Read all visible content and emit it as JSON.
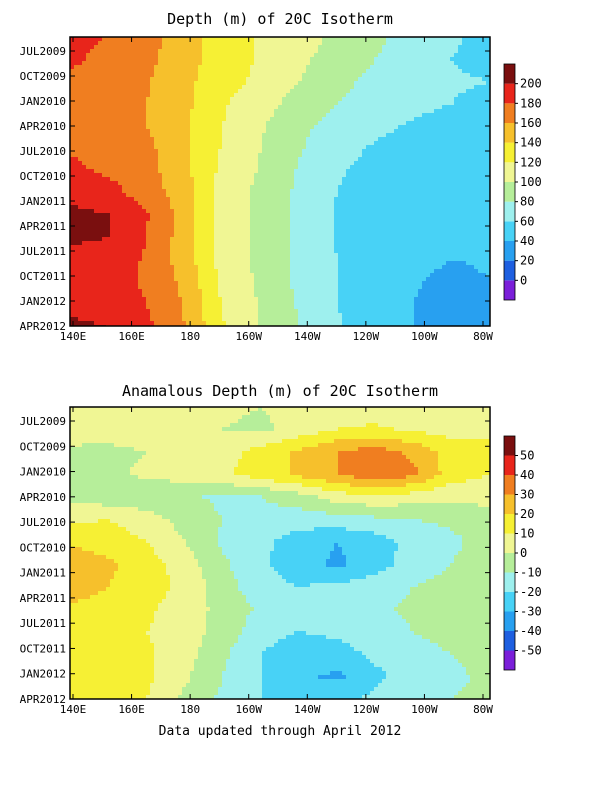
{
  "footer": "Data updated through April 2012",
  "chart_data": [
    {
      "type": "heatmap",
      "title": "Depth (m) of 20C Isotherm",
      "x_ticks": [
        "140E",
        "160E",
        "180",
        "160W",
        "140W",
        "120W",
        "100W",
        "80W"
      ],
      "y_ticks": [
        "JUL2009",
        "OCT2009",
        "JAN2010",
        "APR2010",
        "JUL2010",
        "OCT2010",
        "JAN2011",
        "APR2011",
        "JUL2011",
        "OCT2011",
        "JAN2012",
        "APR2012"
      ],
      "colorbar": {
        "labels": [
          "200",
          "180",
          "160",
          "140",
          "120",
          "100",
          "80",
          "60",
          "40",
          "20",
          "0"
        ],
        "levels": [
          0,
          20,
          40,
          60,
          80,
          100,
          120,
          140,
          160,
          180,
          200
        ],
        "colors": [
          "#7b1fd9",
          "#1e5fe0",
          "#28a0f0",
          "#48d2f6",
          "#9ef0ee",
          "#b6ee9a",
          "#f0f694",
          "#f6f034",
          "#f6c02c",
          "#f07e20",
          "#e8251b",
          "#7a0f0f"
        ]
      },
      "grid": [
        [
          190,
          178,
          168,
          150,
          128,
          118,
          108,
          96,
          84,
          72,
          62,
          55
        ],
        [
          185,
          172,
          165,
          148,
          130,
          118,
          104,
          92,
          80,
          70,
          60,
          55
        ],
        [
          175,
          168,
          162,
          145,
          128,
          115,
          100,
          85,
          75,
          68,
          62,
          60
        ],
        [
          170,
          165,
          160,
          145,
          122,
          108,
          92,
          80,
          72,
          65,
          60,
          55
        ],
        [
          175,
          165,
          160,
          142,
          120,
          102,
          85,
          72,
          64,
          58,
          52,
          50
        ],
        [
          178,
          170,
          165,
          145,
          118,
          100,
          82,
          66,
          58,
          54,
          50,
          48
        ],
        [
          185,
          176,
          168,
          145,
          115,
          98,
          78,
          62,
          55,
          50,
          45,
          44
        ],
        [
          195,
          188,
          170,
          150,
          110,
          96,
          76,
          60,
          52,
          46,
          40,
          42
        ],
        [
          205,
          200,
          182,
          152,
          110,
          95,
          75,
          58,
          50,
          45,
          42,
          45
        ],
        [
          205,
          200,
          180,
          150,
          110,
          95,
          75,
          58,
          50,
          45,
          42,
          45
        ],
        [
          190,
          190,
          178,
          150,
          112,
          95,
          75,
          60,
          52,
          45,
          40,
          42
        ],
        [
          190,
          185,
          178,
          155,
          115,
          96,
          75,
          60,
          50,
          42,
          35,
          40
        ],
        [
          192,
          188,
          180,
          158,
          118,
          98,
          78,
          60,
          48,
          40,
          32,
          38
        ],
        [
          205,
          200,
          185,
          160,
          122,
          98,
          80,
          62,
          48,
          40,
          32,
          38
        ]
      ]
    },
    {
      "type": "heatmap",
      "title": "Anamalous Depth (m) of 20C Isotherm",
      "x_ticks": [
        "140E",
        "160E",
        "180",
        "160W",
        "140W",
        "120W",
        "100W",
        "80W"
      ],
      "y_ticks": [
        "JUL2009",
        "OCT2009",
        "JAN2010",
        "APR2010",
        "JUL2010",
        "OCT2010",
        "JAN2011",
        "APR2011",
        "JUL2011",
        "OCT2011",
        "JAN2012",
        "APR2012"
      ],
      "colorbar": {
        "labels": [
          "50",
          "40",
          "30",
          "20",
          "10",
          "0",
          "-10",
          "-20",
          "-30",
          "-40",
          "-50"
        ],
        "levels": [
          -50,
          -40,
          -30,
          -20,
          -10,
          0,
          10,
          20,
          30,
          40,
          50
        ],
        "colors": [
          "#7b1fd9",
          "#1e5fe0",
          "#28a0f0",
          "#48d2f6",
          "#9ef0ee",
          "#b6ee9a",
          "#f0f694",
          "#f6f034",
          "#f6c02c",
          "#f07e20",
          "#e8251b",
          "#7a0f0f"
        ]
      },
      "grid": [
        [
          4,
          6,
          8,
          5,
          2,
          0,
          3,
          5,
          4,
          2,
          3,
          5
        ],
        [
          5,
          8,
          7,
          4,
          0,
          -2,
          4,
          10,
          12,
          8,
          6,
          8
        ],
        [
          -2,
          -4,
          0,
          2,
          6,
          14,
          22,
          30,
          35,
          28,
          15,
          12
        ],
        [
          -4,
          -2,
          2,
          4,
          8,
          15,
          22,
          30,
          38,
          32,
          15,
          10
        ],
        [
          -3,
          -6,
          -8,
          -8,
          -12,
          -10,
          -4,
          5,
          8,
          5,
          2,
          4
        ],
        [
          8,
          10,
          5,
          -4,
          -10,
          -14,
          -16,
          -14,
          -12,
          -10,
          -8,
          -5
        ],
        [
          18,
          15,
          10,
          0,
          -12,
          -18,
          -24,
          -30,
          -25,
          -16,
          -12,
          -6
        ],
        [
          28,
          22,
          15,
          5,
          -8,
          -18,
          -26,
          -32,
          -24,
          -16,
          -10,
          -4
        ],
        [
          25,
          20,
          14,
          8,
          -6,
          -16,
          -20,
          -18,
          -14,
          -10,
          -6,
          -2
        ],
        [
          18,
          16,
          12,
          5,
          -3,
          -12,
          -18,
          -15,
          -12,
          -8,
          -4,
          0
        ],
        [
          12,
          14,
          10,
          5,
          -4,
          -16,
          -20,
          -18,
          -14,
          -10,
          -6,
          -2
        ],
        [
          15,
          16,
          12,
          4,
          -8,
          -20,
          -26,
          -24,
          -18,
          -14,
          -10,
          -6
        ],
        [
          20,
          18,
          12,
          2,
          -10,
          -20,
          -28,
          -32,
          -22,
          -16,
          -12,
          -8
        ],
        [
          16,
          14,
          10,
          -2,
          -12,
          -20,
          -26,
          -22,
          -18,
          -14,
          -10,
          -8
        ]
      ]
    }
  ]
}
